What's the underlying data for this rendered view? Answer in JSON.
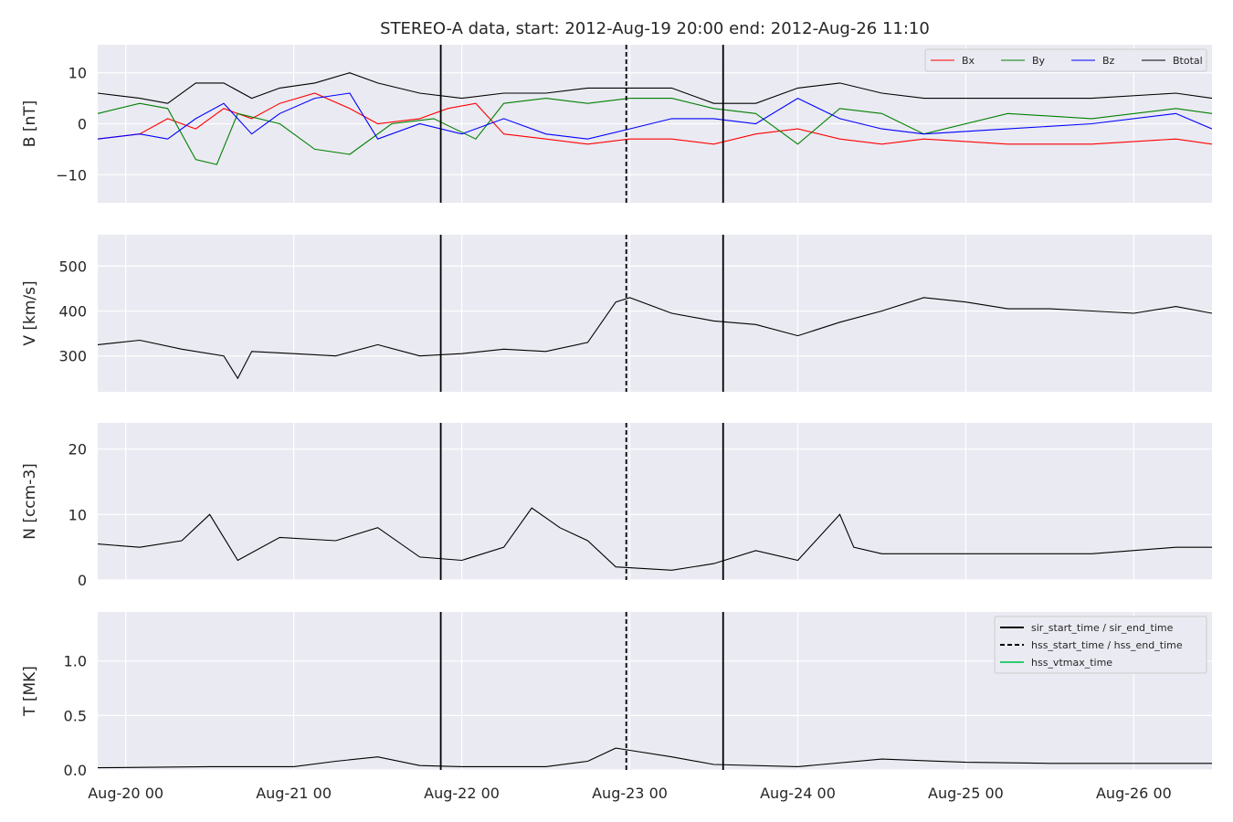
{
  "chart_data": {
    "type": "line",
    "title": "STEREO-A data, start: 2012-Aug-19 20:00  end: 2012-Aug-26 11:10",
    "x_range": [
      "2012-08-19T20:00",
      "2012-08-26T11:10"
    ],
    "x_tick_labels": [
      "Aug-20 00",
      "Aug-21 00",
      "Aug-22 00",
      "Aug-23 00",
      "Aug-24 00",
      "Aug-25 00",
      "Aug-26 00"
    ],
    "x_tick_dates": [
      "2012-08-20T00:00",
      "2012-08-21T00:00",
      "2012-08-22T00:00",
      "2012-08-23T00:00",
      "2012-08-24T00:00",
      "2012-08-25T00:00",
      "2012-08-26T00:00"
    ],
    "grid": true,
    "event_lines": [
      {
        "name": "sir_start_time",
        "time": "2012-08-21T21:00",
        "style": "solid"
      },
      {
        "name": "hss_start_time",
        "time": "2012-08-22T23:30",
        "style": "dashed"
      },
      {
        "name": "sir_end_time",
        "time": "2012-08-23T13:20",
        "style": "solid"
      }
    ],
    "panels": [
      {
        "ylabel": "B [nT]",
        "ylim": [
          -15.5,
          15.5
        ],
        "yticks": [
          10,
          0,
          -10
        ],
        "ytick_labels": [
          "10",
          "0",
          "−10"
        ],
        "legend": {
          "position": "upper right",
          "columns": 4
        },
        "series": [
          {
            "name": "Bx",
            "color": "#ff0000",
            "points": [
              [
                "2012-08-19T20:00",
                -3
              ],
              [
                "2012-08-20T02:00",
                -2
              ],
              [
                "2012-08-20T06:00",
                1
              ],
              [
                "2012-08-20T10:00",
                -1
              ],
              [
                "2012-08-20T14:00",
                3
              ],
              [
                "2012-08-20T18:00",
                1
              ],
              [
                "2012-08-20T22:00",
                4
              ],
              [
                "2012-08-21T03:00",
                6
              ],
              [
                "2012-08-21T08:00",
                3
              ],
              [
                "2012-08-21T12:00",
                0
              ],
              [
                "2012-08-21T18:00",
                1
              ],
              [
                "2012-08-21T22:00",
                3
              ],
              [
                "2012-08-22T02:00",
                4
              ],
              [
                "2012-08-22T06:00",
                -2
              ],
              [
                "2012-08-22T12:00",
                -3
              ],
              [
                "2012-08-22T18:00",
                -4
              ],
              [
                "2012-08-23T00:00",
                -3
              ],
              [
                "2012-08-23T06:00",
                -3
              ],
              [
                "2012-08-23T12:00",
                -4
              ],
              [
                "2012-08-23T18:00",
                -2
              ],
              [
                "2012-08-24T00:00",
                -1
              ],
              [
                "2012-08-24T06:00",
                -3
              ],
              [
                "2012-08-24T12:00",
                -4
              ],
              [
                "2012-08-24T18:00",
                -3
              ],
              [
                "2012-08-25T06:00",
                -4
              ],
              [
                "2012-08-25T18:00",
                -4
              ],
              [
                "2012-08-26T06:00",
                -3
              ],
              [
                "2012-08-26T11:10",
                -4
              ]
            ]
          },
          {
            "name": "By",
            "color": "#008000",
            "points": [
              [
                "2012-08-19T20:00",
                2
              ],
              [
                "2012-08-20T02:00",
                4
              ],
              [
                "2012-08-20T06:00",
                3
              ],
              [
                "2012-08-20T10:00",
                -7
              ],
              [
                "2012-08-20T13:00",
                -8
              ],
              [
                "2012-08-20T16:00",
                2
              ],
              [
                "2012-08-20T22:00",
                0
              ],
              [
                "2012-08-21T03:00",
                -5
              ],
              [
                "2012-08-21T08:00",
                -6
              ],
              [
                "2012-08-21T14:00",
                0
              ],
              [
                "2012-08-21T20:00",
                1
              ],
              [
                "2012-08-22T02:00",
                -3
              ],
              [
                "2012-08-22T06:00",
                4
              ],
              [
                "2012-08-22T12:00",
                5
              ],
              [
                "2012-08-22T18:00",
                4
              ],
              [
                "2012-08-23T00:00",
                5
              ],
              [
                "2012-08-23T06:00",
                5
              ],
              [
                "2012-08-23T12:00",
                3
              ],
              [
                "2012-08-23T18:00",
                2
              ],
              [
                "2012-08-24T00:00",
                -4
              ],
              [
                "2012-08-24T06:00",
                3
              ],
              [
                "2012-08-24T12:00",
                2
              ],
              [
                "2012-08-24T18:00",
                -2
              ],
              [
                "2012-08-25T06:00",
                2
              ],
              [
                "2012-08-25T18:00",
                1
              ],
              [
                "2012-08-26T06:00",
                3
              ],
              [
                "2012-08-26T11:10",
                2
              ]
            ]
          },
          {
            "name": "Bz",
            "color": "#0000ff",
            "points": [
              [
                "2012-08-19T20:00",
                -3
              ],
              [
                "2012-08-20T02:00",
                -2
              ],
              [
                "2012-08-20T06:00",
                -3
              ],
              [
                "2012-08-20T10:00",
                1
              ],
              [
                "2012-08-20T14:00",
                4
              ],
              [
                "2012-08-20T18:00",
                -2
              ],
              [
                "2012-08-20T22:00",
                2
              ],
              [
                "2012-08-21T03:00",
                5
              ],
              [
                "2012-08-21T08:00",
                6
              ],
              [
                "2012-08-21T12:00",
                -3
              ],
              [
                "2012-08-21T18:00",
                0
              ],
              [
                "2012-08-22T00:00",
                -2
              ],
              [
                "2012-08-22T06:00",
                1
              ],
              [
                "2012-08-22T12:00",
                -2
              ],
              [
                "2012-08-22T18:00",
                -3
              ],
              [
                "2012-08-23T00:00",
                -1
              ],
              [
                "2012-08-23T06:00",
                1
              ],
              [
                "2012-08-23T12:00",
                1
              ],
              [
                "2012-08-23T18:00",
                0
              ],
              [
                "2012-08-24T00:00",
                5
              ],
              [
                "2012-08-24T06:00",
                1
              ],
              [
                "2012-08-24T12:00",
                -1
              ],
              [
                "2012-08-24T18:00",
                -2
              ],
              [
                "2012-08-25T06:00",
                -1
              ],
              [
                "2012-08-25T18:00",
                0
              ],
              [
                "2012-08-26T06:00",
                2
              ],
              [
                "2012-08-26T11:10",
                -1
              ]
            ]
          },
          {
            "name": "Btotal",
            "color": "#000000",
            "points": [
              [
                "2012-08-19T20:00",
                6
              ],
              [
                "2012-08-20T02:00",
                5
              ],
              [
                "2012-08-20T06:00",
                4
              ],
              [
                "2012-08-20T10:00",
                8
              ],
              [
                "2012-08-20T14:00",
                8
              ],
              [
                "2012-08-20T18:00",
                5
              ],
              [
                "2012-08-20T22:00",
                7
              ],
              [
                "2012-08-21T03:00",
                8
              ],
              [
                "2012-08-21T08:00",
                10
              ],
              [
                "2012-08-21T12:00",
                8
              ],
              [
                "2012-08-21T18:00",
                6
              ],
              [
                "2012-08-22T00:00",
                5
              ],
              [
                "2012-08-22T06:00",
                6
              ],
              [
                "2012-08-22T12:00",
                6
              ],
              [
                "2012-08-22T18:00",
                7
              ],
              [
                "2012-08-23T00:00",
                7
              ],
              [
                "2012-08-23T06:00",
                7
              ],
              [
                "2012-08-23T12:00",
                4
              ],
              [
                "2012-08-23T18:00",
                4
              ],
              [
                "2012-08-24T00:00",
                7
              ],
              [
                "2012-08-24T06:00",
                8
              ],
              [
                "2012-08-24T12:00",
                6
              ],
              [
                "2012-08-24T18:00",
                5
              ],
              [
                "2012-08-25T06:00",
                5
              ],
              [
                "2012-08-25T18:00",
                5
              ],
              [
                "2012-08-26T06:00",
                6
              ],
              [
                "2012-08-26T11:10",
                5
              ]
            ]
          }
        ]
      },
      {
        "ylabel": "V [km/s]",
        "ylim": [
          220,
          570
        ],
        "yticks": [
          500,
          400,
          300
        ],
        "ytick_labels": [
          "500",
          "400",
          "300"
        ],
        "series": [
          {
            "name": "",
            "color": "#000000",
            "points": [
              [
                "2012-08-19T20:00",
                325
              ],
              [
                "2012-08-20T02:00",
                335
              ],
              [
                "2012-08-20T08:00",
                315
              ],
              [
                "2012-08-20T14:00",
                300
              ],
              [
                "2012-08-20T16:00",
                250
              ],
              [
                "2012-08-20T18:00",
                310
              ],
              [
                "2012-08-21T00:00",
                305
              ],
              [
                "2012-08-21T06:00",
                300
              ],
              [
                "2012-08-21T12:00",
                325
              ],
              [
                "2012-08-21T18:00",
                300
              ],
              [
                "2012-08-22T00:00",
                305
              ],
              [
                "2012-08-22T06:00",
                315
              ],
              [
                "2012-08-22T12:00",
                310
              ],
              [
                "2012-08-22T18:00",
                330
              ],
              [
                "2012-08-22T22:00",
                420
              ],
              [
                "2012-08-23T00:00",
                430
              ],
              [
                "2012-08-23T06:00",
                395
              ],
              [
                "2012-08-23T12:00",
                378
              ],
              [
                "2012-08-23T18:00",
                370
              ],
              [
                "2012-08-24T00:00",
                345
              ],
              [
                "2012-08-24T06:00",
                375
              ],
              [
                "2012-08-24T12:00",
                400
              ],
              [
                "2012-08-24T18:00",
                430
              ],
              [
                "2012-08-25T00:00",
                420
              ],
              [
                "2012-08-25T06:00",
                405
              ],
              [
                "2012-08-25T12:00",
                405
              ],
              [
                "2012-08-25T18:00",
                400
              ],
              [
                "2012-08-26T00:00",
                395
              ],
              [
                "2012-08-26T06:00",
                410
              ],
              [
                "2012-08-26T11:10",
                395
              ]
            ]
          }
        ]
      },
      {
        "ylabel": "N [ccm-3]",
        "ylim": [
          0,
          24
        ],
        "yticks": [
          20,
          10,
          0
        ],
        "ytick_labels": [
          "20",
          "10",
          "0"
        ],
        "series": [
          {
            "name": "",
            "color": "#000000",
            "points": [
              [
                "2012-08-19T20:00",
                5.5
              ],
              [
                "2012-08-20T02:00",
                5
              ],
              [
                "2012-08-20T08:00",
                6
              ],
              [
                "2012-08-20T12:00",
                10
              ],
              [
                "2012-08-20T16:00",
                3
              ],
              [
                "2012-08-20T22:00",
                6.5
              ],
              [
                "2012-08-21T06:00",
                6
              ],
              [
                "2012-08-21T12:00",
                8
              ],
              [
                "2012-08-21T18:00",
                3.5
              ],
              [
                "2012-08-22T00:00",
                3
              ],
              [
                "2012-08-22T06:00",
                5
              ],
              [
                "2012-08-22T10:00",
                11
              ],
              [
                "2012-08-22T14:00",
                8
              ],
              [
                "2012-08-22T18:00",
                6
              ],
              [
                "2012-08-22T22:00",
                2
              ],
              [
                "2012-08-23T06:00",
                1.5
              ],
              [
                "2012-08-23T12:00",
                2.5
              ],
              [
                "2012-08-23T18:00",
                4.5
              ],
              [
                "2012-08-24T00:00",
                3
              ],
              [
                "2012-08-24T06:00",
                10
              ],
              [
                "2012-08-24T08:00",
                5
              ],
              [
                "2012-08-24T12:00",
                4
              ],
              [
                "2012-08-24T18:00",
                4
              ],
              [
                "2012-08-25T06:00",
                4
              ],
              [
                "2012-08-25T18:00",
                4
              ],
              [
                "2012-08-26T06:00",
                5
              ],
              [
                "2012-08-26T11:10",
                5
              ]
            ]
          }
        ]
      },
      {
        "ylabel": "T [MK]",
        "ylim": [
          0,
          1.45
        ],
        "yticks": [
          1.0,
          0.5,
          0.0
        ],
        "ytick_labels": [
          "1.0",
          "0.5",
          "0.0"
        ],
        "legend": {
          "position": "upper right",
          "entries": [
            {
              "label": "sir_start_time / sir_end_time",
              "color": "#000000",
              "style": "solid"
            },
            {
              "label": "hss_start_time / hss_end_time",
              "color": "#000000",
              "style": "dashed"
            },
            {
              "label": "hss_vtmax_time",
              "color": "#2ecc71",
              "style": "solid"
            }
          ]
        },
        "series": [
          {
            "name": "",
            "color": "#000000",
            "points": [
              [
                "2012-08-19T20:00",
                0.02
              ],
              [
                "2012-08-20T12:00",
                0.03
              ],
              [
                "2012-08-21T00:00",
                0.03
              ],
              [
                "2012-08-21T06:00",
                0.08
              ],
              [
                "2012-08-21T12:00",
                0.12
              ],
              [
                "2012-08-21T18:00",
                0.04
              ],
              [
                "2012-08-22T00:00",
                0.03
              ],
              [
                "2012-08-22T12:00",
                0.03
              ],
              [
                "2012-08-22T18:00",
                0.08
              ],
              [
                "2012-08-22T22:00",
                0.2
              ],
              [
                "2012-08-23T00:00",
                0.18
              ],
              [
                "2012-08-23T06:00",
                0.12
              ],
              [
                "2012-08-23T12:00",
                0.05
              ],
              [
                "2012-08-24T00:00",
                0.03
              ],
              [
                "2012-08-24T12:00",
                0.1
              ],
              [
                "2012-08-25T00:00",
                0.07
              ],
              [
                "2012-08-25T12:00",
                0.06
              ],
              [
                "2012-08-26T00:00",
                0.06
              ],
              [
                "2012-08-26T11:10",
                0.06
              ]
            ]
          }
        ]
      }
    ]
  }
}
